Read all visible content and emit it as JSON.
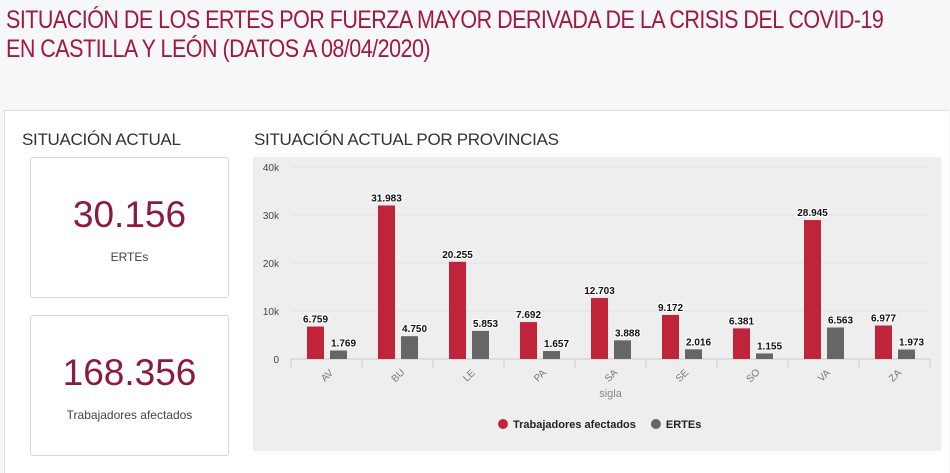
{
  "title_line1": "SITUACIÓN DE LOS ERTES POR FUERZA MAYOR DERIVADA DE LA CRISIS DEL COVID-19",
  "title_line2": "EN CASTILLA Y LEÓN (DATOS A 08/04/2020)",
  "left_section": {
    "heading": "SITUACIÓN ACTUAL",
    "cards": [
      {
        "value": "30.156",
        "label": "ERTEs"
      },
      {
        "value": "168.356",
        "label": "Trabajadores afectados"
      }
    ]
  },
  "chart_section": {
    "heading": "SITUACIÓN ACTUAL POR PROVINCIAS"
  },
  "colors": {
    "title": "#a3183f",
    "kpi": "#8c1a3e",
    "series_workers": "#c0243a",
    "series_ertes": "#666666"
  },
  "chart_data": {
    "type": "bar",
    "xlabel": "sigla",
    "ylabel": "",
    "ylim": [
      0,
      40000
    ],
    "yticks": [
      0,
      10000,
      20000,
      30000,
      40000
    ],
    "ytick_labels": [
      "0",
      "10k",
      "20k",
      "30k",
      "40k"
    ],
    "grid": true,
    "legend_position": "bottom",
    "categories": [
      "AV",
      "BU",
      "LE",
      "PA",
      "SA",
      "SE",
      "SO",
      "VA",
      "ZA"
    ],
    "series": [
      {
        "name": "Trabajadores afectados",
        "color": "#c0243a",
        "values": [
          6759,
          31983,
          20255,
          7692,
          12703,
          9172,
          6381,
          28945,
          6977
        ],
        "labels": [
          "6.759",
          "31.983",
          "20.255",
          "7.692",
          "12.703",
          "9.172",
          "6.381",
          "28.945",
          "6.977"
        ]
      },
      {
        "name": "ERTEs",
        "color": "#666666",
        "values": [
          1769,
          4750,
          5853,
          1657,
          3888,
          2016,
          1155,
          6563,
          1973
        ],
        "labels": [
          "1.769",
          "4.750",
          "5.853",
          "1.657",
          "3.888",
          "2.016",
          "1.155",
          "6.563",
          "1.973"
        ]
      }
    ]
  }
}
